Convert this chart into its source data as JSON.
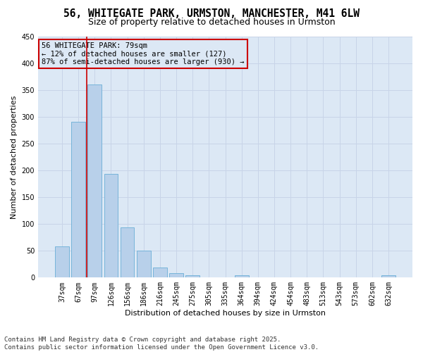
{
  "title": "56, WHITEGATE PARK, URMSTON, MANCHESTER, M41 6LW",
  "subtitle": "Size of property relative to detached houses in Urmston",
  "xlabel": "Distribution of detached houses by size in Urmston",
  "ylabel": "Number of detached properties",
  "categories": [
    "37sqm",
    "67sqm",
    "97sqm",
    "126sqm",
    "156sqm",
    "186sqm",
    "216sqm",
    "245sqm",
    "275sqm",
    "305sqm",
    "335sqm",
    "364sqm",
    "394sqm",
    "424sqm",
    "454sqm",
    "483sqm",
    "513sqm",
    "543sqm",
    "573sqm",
    "602sqm",
    "632sqm"
  ],
  "values": [
    58,
    291,
    360,
    194,
    93,
    50,
    19,
    8,
    5,
    0,
    0,
    4,
    0,
    0,
    0,
    0,
    0,
    0,
    0,
    0,
    4
  ],
  "bar_color": "#b8d0ea",
  "bar_edge_color": "#6aaed6",
  "grid_color": "#c8d4e8",
  "background_color": "#ffffff",
  "plot_bg_color": "#dce8f5",
  "vline_x_index": 1,
  "vline_color": "#cc0000",
  "annotation_text": "56 WHITEGATE PARK: 79sqm\n← 12% of detached houses are smaller (127)\n87% of semi-detached houses are larger (930) →",
  "annotation_box_color": "#cc0000",
  "annotation_bg_color": "#dce8f5",
  "ylim": [
    0,
    450
  ],
  "yticks": [
    0,
    50,
    100,
    150,
    200,
    250,
    300,
    350,
    400,
    450
  ],
  "footer": "Contains HM Land Registry data © Crown copyright and database right 2025.\nContains public sector information licensed under the Open Government Licence v3.0.",
  "title_fontsize": 10.5,
  "subtitle_fontsize": 9,
  "axis_label_fontsize": 8,
  "tick_fontsize": 7,
  "annotation_fontsize": 7.5,
  "footer_fontsize": 6.5
}
